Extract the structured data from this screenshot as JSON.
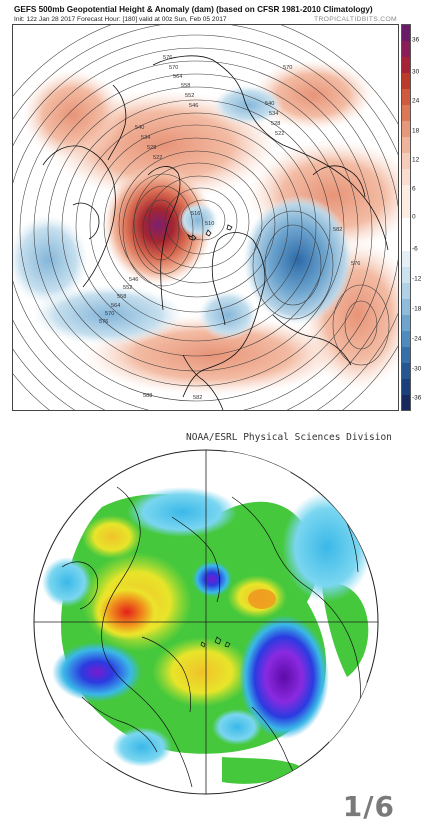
{
  "top_panel": {
    "title": "GEFS 500mb Geopotential Height & Anomaly (dam) (based on CFSR 1981-2010 Climatology)",
    "subtitle": "Init: 12z Jan 28 2017   Forecast Hour: [180]   valid at 00z Sun, Feb 05 2017",
    "credit": "TROPICALTIDBITS.COM",
    "colorbar_labels": [
      "36",
      "30",
      "24",
      "18",
      "12",
      "6",
      "0",
      "-6",
      "-12",
      "-18",
      "-24",
      "-30",
      "-36"
    ],
    "height_contour_labels": [
      "576",
      "570",
      "564",
      "558",
      "552",
      "546",
      "540",
      "534",
      "528",
      "522",
      "516",
      "510",
      "576",
      "570",
      "564",
      "558",
      "552",
      "546",
      "540",
      "534",
      "528",
      "522",
      "582",
      "588",
      "576",
      "582",
      "570"
    ],
    "colors": {
      "positive_strong": "#7b1d6e",
      "positive_mid": "#b2332a",
      "positive_light": "#f0b79c",
      "neutral": "#ffffff",
      "negative_light": "#a8cbe0",
      "negative_mid": "#3a7db8",
      "negative_strong": "#1b2e6e"
    }
  },
  "bottom_panel": {
    "title": "NOAA/ESRL Physical Sciences Division",
    "colors": {
      "purple": "#6b11b8",
      "blue": "#2a3be0",
      "cyan": "#3ab8e8",
      "green": "#45c83c",
      "yellow": "#e8e52a",
      "orange": "#f08a1c",
      "red": "#e02a18"
    }
  },
  "page_counter": "1/6"
}
